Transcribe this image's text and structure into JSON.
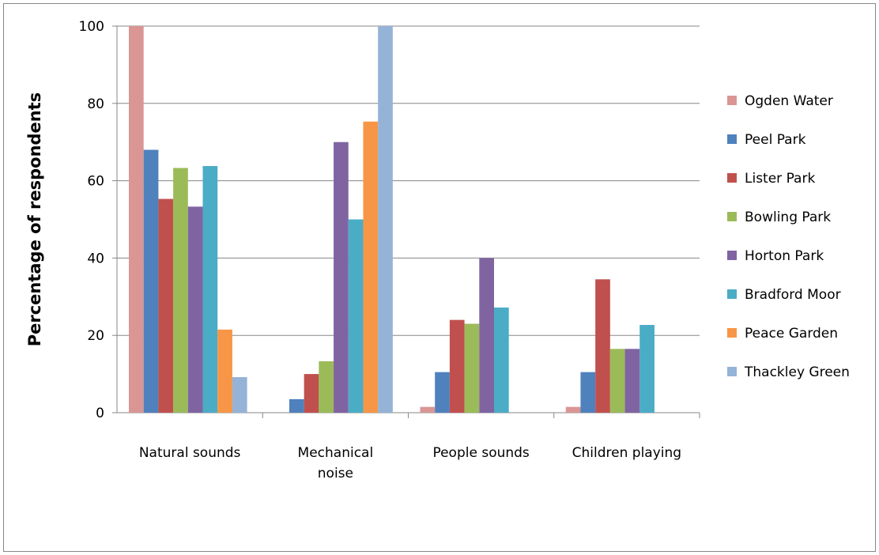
{
  "chart_data": {
    "type": "bar",
    "title": "",
    "xlabel": "",
    "ylabel": "Percentage of respondents",
    "ylim": [
      0,
      100
    ],
    "yticks": [
      0,
      20,
      40,
      60,
      80,
      100
    ],
    "grid": "horizontal",
    "legend_position": "right",
    "categories": [
      [
        "Natural sounds"
      ],
      [
        "Mechanical",
        "noise"
      ],
      [
        "People sounds"
      ],
      [
        "Children playing"
      ]
    ],
    "series": [
      {
        "name": "Ogden Water",
        "color": "#d99694",
        "values": [
          100,
          0,
          1.5,
          1.5
        ]
      },
      {
        "name": "Peel Park",
        "color": "#4f81bd",
        "values": [
          68,
          3.5,
          10.5,
          10.5
        ]
      },
      {
        "name": "Lister Park",
        "color": "#c0504d",
        "values": [
          55.3,
          10,
          24,
          34.5
        ]
      },
      {
        "name": "Bowling Park",
        "color": "#9bbb59",
        "values": [
          63.3,
          13.3,
          23,
          16.5
        ]
      },
      {
        "name": "Horton Park",
        "color": "#8064a2",
        "values": [
          53.3,
          70,
          40,
          16.5
        ]
      },
      {
        "name": "Bradford Moor",
        "color": "#4bacc6",
        "values": [
          63.8,
          50,
          27.2,
          22.7
        ]
      },
      {
        "name": "Peace Garden",
        "color": "#f79646",
        "values": [
          21.5,
          75.3,
          0,
          0
        ]
      },
      {
        "name": "Thackley Green",
        "color": "#95b3d7",
        "values": [
          9.2,
          100,
          0,
          0
        ]
      }
    ]
  }
}
